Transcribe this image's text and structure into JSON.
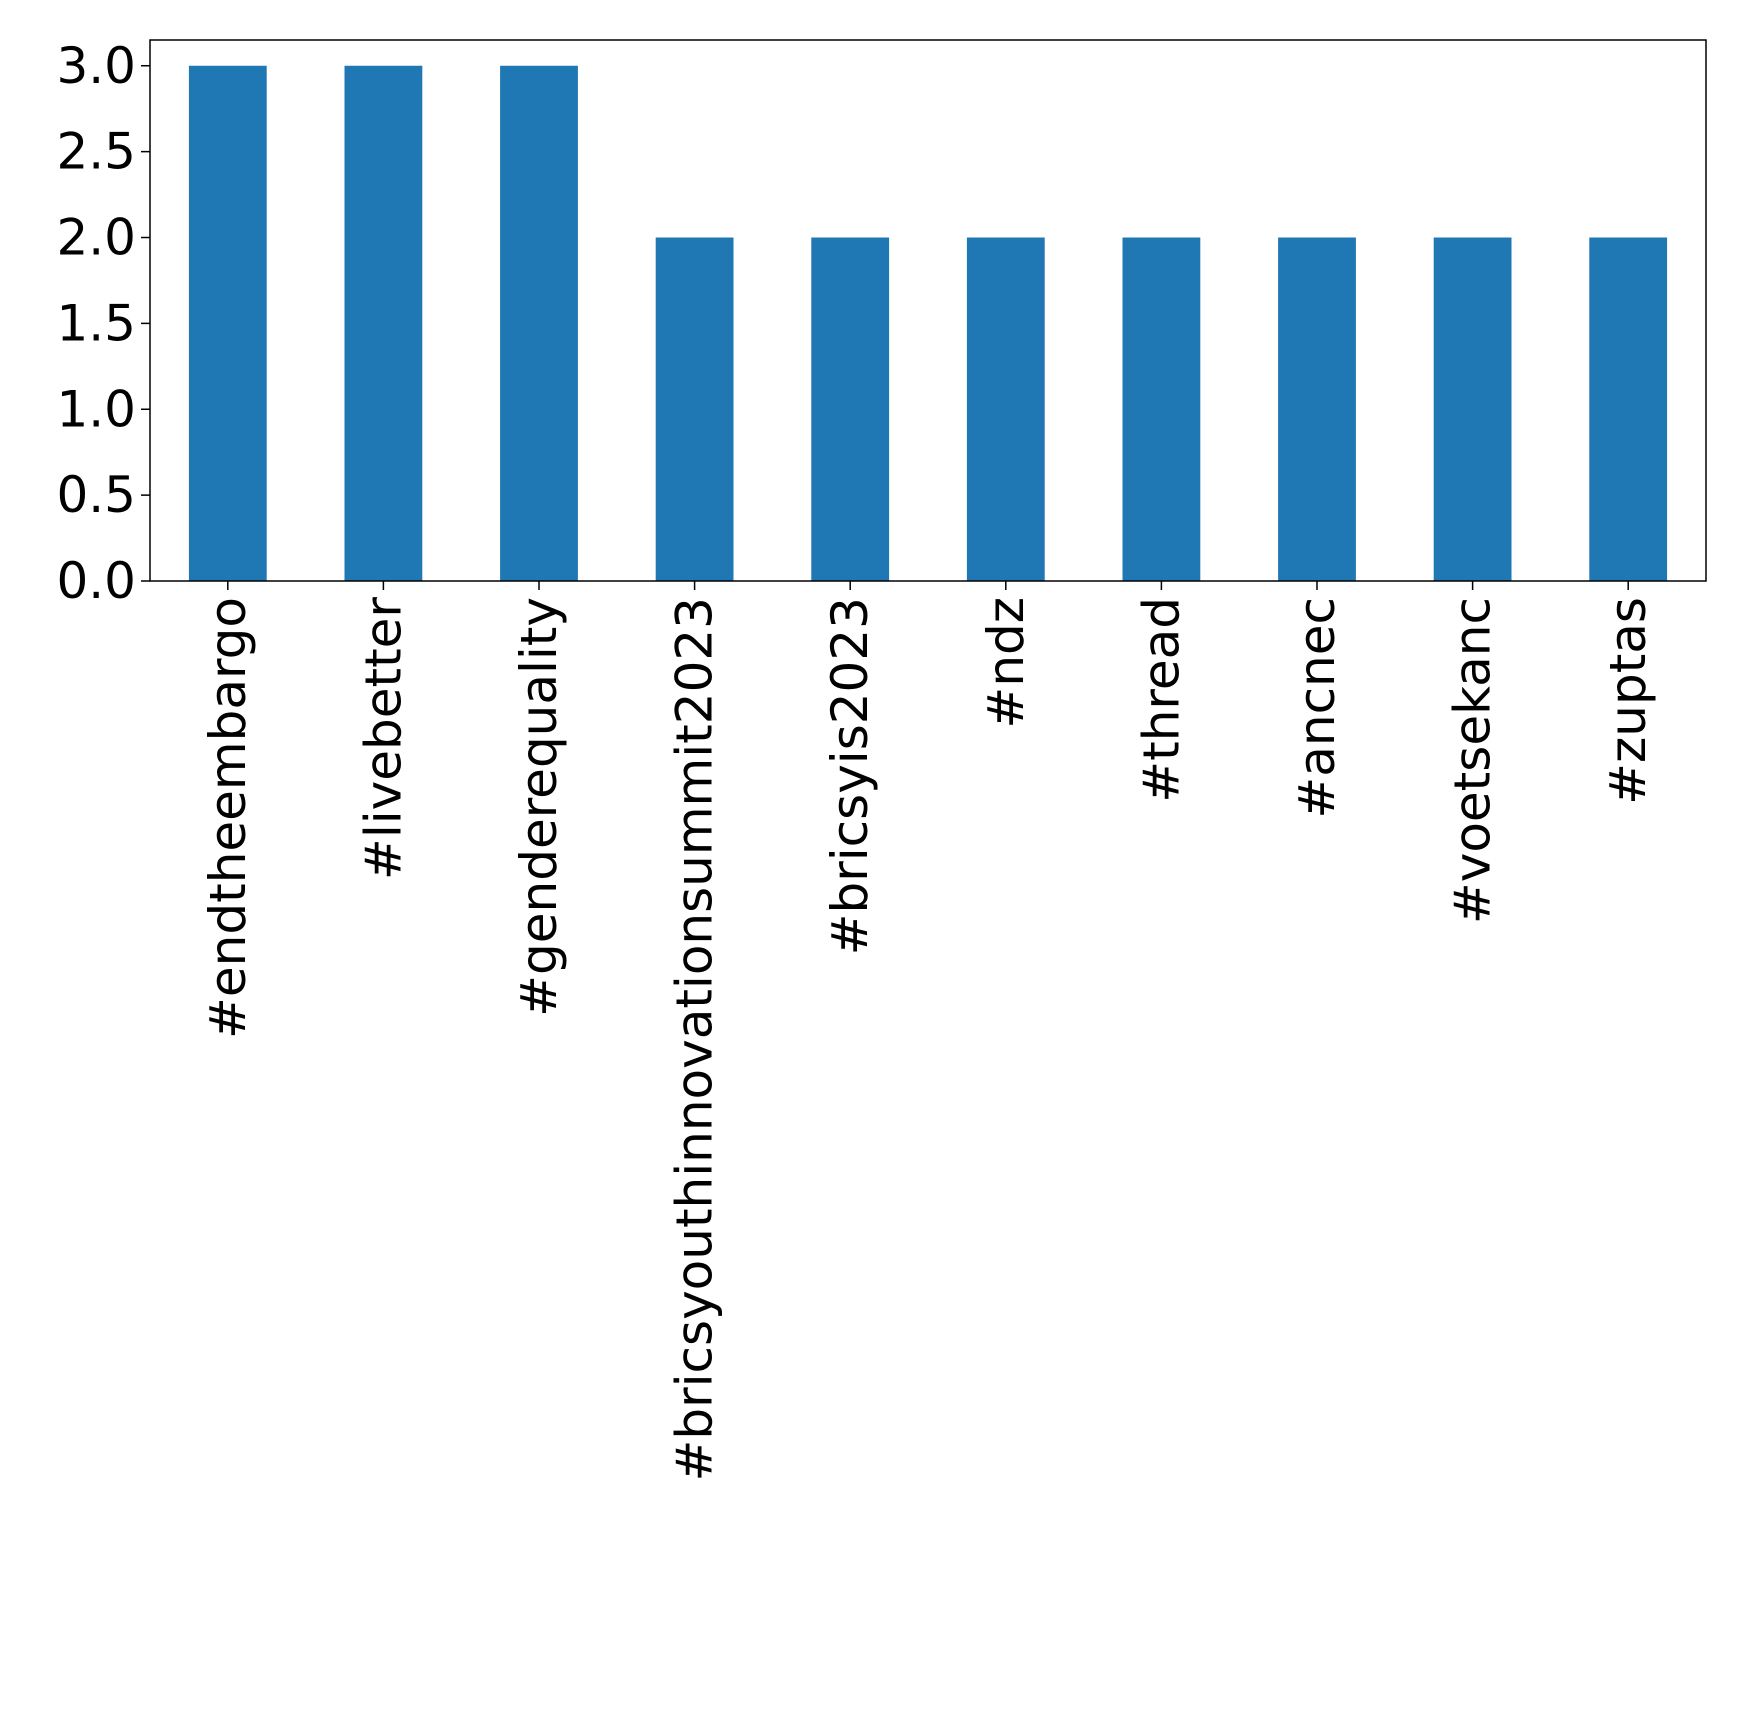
{
  "chart_data": {
    "type": "bar",
    "categories": [
      "#endtheembargo",
      "#livebetter",
      "#genderequality",
      "#bricsyouthinnovationsummit2023",
      "#bricsyis2023",
      "#ndz",
      "#thread",
      "#ancnec",
      "#voetsekanc",
      "#zuptas"
    ],
    "values": [
      3,
      3,
      3,
      2,
      2,
      2,
      2,
      2,
      2,
      2
    ],
    "title": "",
    "xlabel": "",
    "ylabel": "",
    "ylim": [
      0,
      3.15
    ],
    "yticks": [
      "0.0",
      "0.5",
      "1.0",
      "1.5",
      "2.0",
      "2.5",
      "3.0"
    ],
    "grid": false,
    "legend": "none",
    "colors": {
      "bar": "#1f77b4",
      "axis": "#000000",
      "background": "#ffffff"
    }
  }
}
